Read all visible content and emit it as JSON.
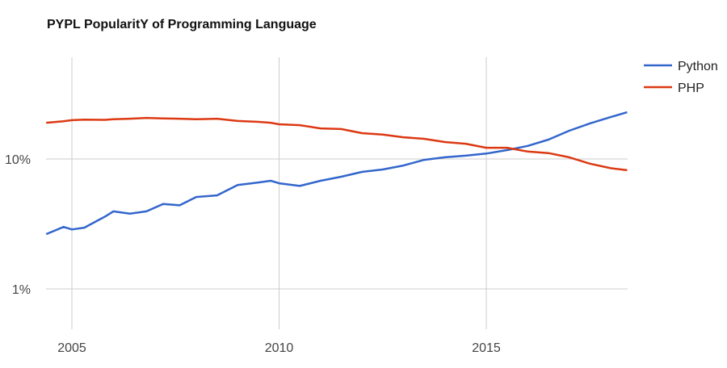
{
  "chart_data": {
    "type": "line",
    "title": "PYPL PopularitY of Programming Language",
    "xlabel": "",
    "ylabel": "",
    "yscale": "log",
    "ylim": [
      0.5,
      40
    ],
    "xlim": [
      2004.38,
      2018.4
    ],
    "grid": true,
    "legend_position": "top-right",
    "x_ticks": [
      {
        "value": 2005,
        "label": "2005"
      },
      {
        "value": 2010,
        "label": "2010"
      },
      {
        "value": 2015,
        "label": "2015"
      }
    ],
    "y_ticks": [
      {
        "value": 10,
        "label": "10%"
      },
      {
        "value": 1,
        "label": "1%"
      }
    ],
    "x": [
      2004.38,
      2004.8,
      2005.0,
      2005.3,
      2005.8,
      2006.0,
      2006.4,
      2006.8,
      2007.2,
      2007.6,
      2008.0,
      2008.5,
      2009.0,
      2009.5,
      2009.8,
      2010.0,
      2010.5,
      2011.0,
      2011.5,
      2012.0,
      2012.5,
      2013.0,
      2013.5,
      2014.0,
      2014.5,
      2015.0,
      2015.5,
      2016.0,
      2016.5,
      2017.0,
      2017.5,
      2018.0,
      2018.4
    ],
    "series": [
      {
        "name": "Python",
        "color": "#3366cc",
        "values": [
          2.64,
          3.0,
          2.87,
          2.96,
          3.6,
          3.95,
          3.8,
          3.95,
          4.5,
          4.4,
          5.1,
          5.25,
          6.3,
          6.6,
          6.8,
          6.5,
          6.2,
          6.8,
          7.3,
          7.95,
          8.3,
          8.9,
          9.85,
          10.3,
          10.6,
          11.0,
          11.7,
          12.6,
          14.1,
          16.5,
          18.8,
          21.0,
          22.9
        ]
      },
      {
        "name": "PHP",
        "color": "#dc3912",
        "values": [
          19.0,
          19.5,
          19.9,
          20.1,
          20.0,
          20.2,
          20.4,
          20.7,
          20.5,
          20.4,
          20.2,
          20.4,
          19.6,
          19.3,
          19.0,
          18.5,
          18.2,
          17.2,
          17.0,
          15.8,
          15.4,
          14.7,
          14.3,
          13.5,
          13.1,
          12.2,
          12.2,
          11.4,
          11.1,
          10.3,
          9.2,
          8.5,
          8.2
        ]
      }
    ]
  }
}
